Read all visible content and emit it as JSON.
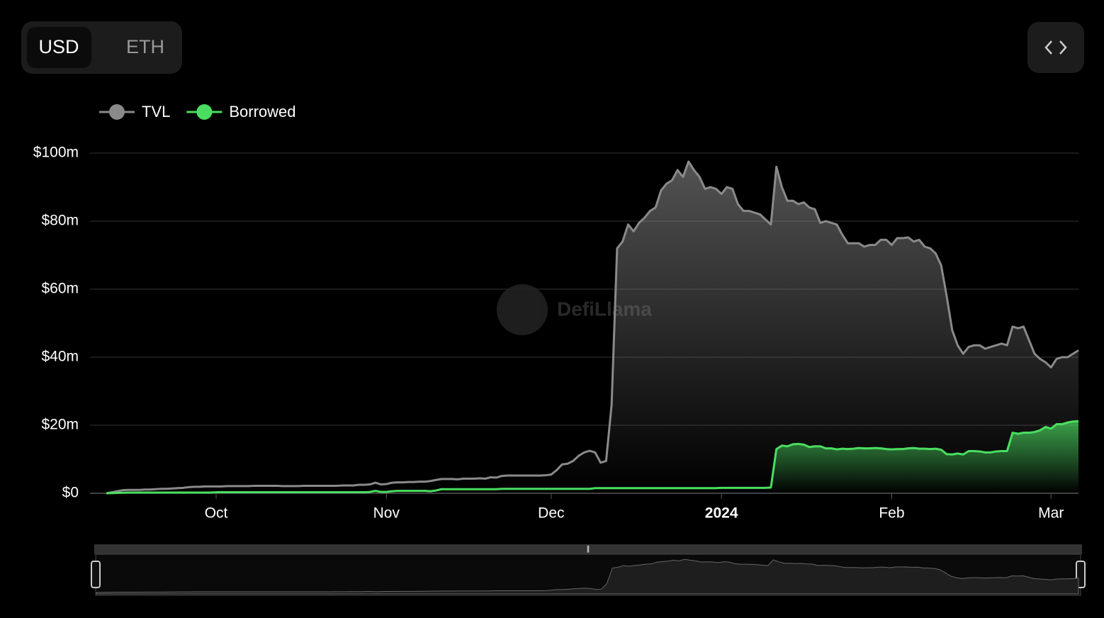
{
  "toggle": {
    "options": [
      "USD",
      "ETH"
    ]
  },
  "watermark": "DefiLlama",
  "chart_data": {
    "type": "area",
    "categories": [
      null,
      null,
      null,
      null,
      null,
      null,
      null,
      null,
      null,
      null,
      null,
      null,
      null,
      null,
      null,
      null,
      null,
      null,
      null,
      null,
      "Oct",
      null,
      null,
      null,
      null,
      null,
      null,
      null,
      null,
      null,
      null,
      null,
      null,
      null,
      null,
      null,
      null,
      null,
      null,
      null,
      null,
      null,
      null,
      null,
      null,
      null,
      null,
      null,
      null,
      null,
      null,
      "Nov",
      null,
      null,
      null,
      null,
      null,
      null,
      null,
      null,
      null,
      null,
      null,
      null,
      null,
      null,
      null,
      null,
      null,
      null,
      null,
      null,
      null,
      null,
      null,
      null,
      null,
      null,
      null,
      null,
      null,
      "Dec",
      null,
      null,
      null,
      null,
      null,
      null,
      null,
      null,
      null,
      null,
      null,
      null,
      null,
      null,
      null,
      null,
      null,
      null,
      null,
      null,
      null,
      null,
      null,
      null,
      null,
      null,
      null,
      null,
      null,
      null,
      "2024",
      null,
      null,
      null,
      null,
      null,
      null,
      null,
      null,
      null,
      null,
      null,
      null,
      null,
      null,
      null,
      null,
      null,
      null,
      null,
      null,
      null,
      null,
      null,
      null,
      null,
      null,
      null,
      null,
      null,
      null,
      "Feb",
      null,
      null,
      null,
      null,
      null,
      null,
      null,
      null,
      null,
      null,
      null,
      null,
      null,
      null,
      null,
      null,
      null,
      null,
      null,
      null,
      null,
      null,
      null,
      null,
      null,
      null,
      null,
      null,
      "Mar",
      null,
      null,
      null,
      null,
      null
    ],
    "series": [
      {
        "name": "TVL",
        "color": "#8a8a8a",
        "values": [
          0,
          0.3,
          0.6,
          0.9,
          1.0,
          1.0,
          1.0,
          1.1,
          1.1,
          1.2,
          1.3,
          1.3,
          1.4,
          1.5,
          1.6,
          1.8,
          1.9,
          1.9,
          2.0,
          2.0,
          2.0,
          2.0,
          2.1,
          2.1,
          2.1,
          2.1,
          2.1,
          2.2,
          2.2,
          2.2,
          2.2,
          2.2,
          2.1,
          2.1,
          2.1,
          2.1,
          2.2,
          2.2,
          2.2,
          2.2,
          2.2,
          2.2,
          2.2,
          2.3,
          2.3,
          2.3,
          2.5,
          2.5,
          2.6,
          3.1,
          2.6,
          2.7,
          3.1,
          3.2,
          3.2,
          3.3,
          3.3,
          3.4,
          3.4,
          3.6,
          3.9,
          4.2,
          4.2,
          4.2,
          4.1,
          4.3,
          4.3,
          4.3,
          4.4,
          4.3,
          4.7,
          4.6,
          5.1,
          5.2,
          5.2,
          5.2,
          5.2,
          5.2,
          5.2,
          5.2,
          5.3,
          5.5,
          6.8,
          8.5,
          8.7,
          9.5,
          11,
          12,
          12.5,
          12,
          9,
          9.5,
          26,
          72,
          74,
          79,
          77,
          79.5,
          81,
          83,
          84,
          89,
          91,
          92,
          95,
          93,
          97.5,
          95,
          93,
          89.5,
          90,
          89.5,
          88,
          90,
          89.5,
          85,
          83,
          83,
          82.5,
          82,
          80.5,
          79,
          96,
          90,
          86,
          86,
          85,
          85.5,
          84,
          83.5,
          79.5,
          80,
          79.5,
          79,
          76,
          73.5,
          73.5,
          73.5,
          72.5,
          73,
          73,
          74.5,
          74.5,
          73,
          75,
          75,
          75.2,
          74,
          74.5,
          72.5,
          72,
          70.5,
          67,
          58,
          48,
          43.5,
          41,
          43,
          43.5,
          43.5,
          42.5,
          43,
          43.5,
          44,
          43.5,
          49,
          48.5,
          49,
          45,
          41,
          39.5,
          38.5,
          37,
          39.5,
          40,
          40,
          41,
          42
        ]
      },
      {
        "name": "Borrowed",
        "color": "#4ade60",
        "values": [
          0,
          0.05,
          0.1,
          0.15,
          0.2,
          0.2,
          0.2,
          0.2,
          0.2,
          0.2,
          0.2,
          0.2,
          0.2,
          0.2,
          0.2,
          0.2,
          0.2,
          0.2,
          0.2,
          0.2,
          0.3,
          0.3,
          0.3,
          0.3,
          0.3,
          0.3,
          0.3,
          0.3,
          0.3,
          0.3,
          0.3,
          0.3,
          0.3,
          0.3,
          0.3,
          0.3,
          0.3,
          0.3,
          0.3,
          0.3,
          0.3,
          0.3,
          0.3,
          0.3,
          0.3,
          0.3,
          0.3,
          0.3,
          0.4,
          0.7,
          0.4,
          0.4,
          0.6,
          0.7,
          0.7,
          0.7,
          0.7,
          0.7,
          0.7,
          0.6,
          0.8,
          1.2,
          1.2,
          1.2,
          1.2,
          1.2,
          1.2,
          1.2,
          1.2,
          1.2,
          1.2,
          1.2,
          1.3,
          1.3,
          1.3,
          1.3,
          1.3,
          1.3,
          1.3,
          1.3,
          1.3,
          1.3,
          1.3,
          1.3,
          1.3,
          1.3,
          1.3,
          1.3,
          1.3,
          1.5,
          1.5,
          1.5,
          1.5,
          1.5,
          1.5,
          1.5,
          1.5,
          1.5,
          1.5,
          1.5,
          1.5,
          1.5,
          1.5,
          1.5,
          1.5,
          1.5,
          1.5,
          1.5,
          1.5,
          1.5,
          1.5,
          1.5,
          1.6,
          1.6,
          1.6,
          1.6,
          1.6,
          1.6,
          1.6,
          1.6,
          1.6,
          1.7,
          13,
          14,
          13.8,
          14.4,
          14.5,
          14.3,
          13.6,
          13.8,
          13.8,
          13.2,
          13.2,
          12.9,
          13.1,
          13,
          13.1,
          13.3,
          13.2,
          13.2,
          13.3,
          13.2,
          13,
          12.9,
          13,
          13,
          13.2,
          13.3,
          13.1,
          13.1,
          13,
          13.1,
          12.8,
          11.5,
          11.4,
          11.7,
          11.4,
          12.4,
          12.4,
          12.3,
          12,
          12,
          12.3,
          12.4,
          12.4,
          17.8,
          17.5,
          17.8,
          17.8,
          18,
          18.5,
          19.5,
          19,
          20.3,
          20.3,
          20.8,
          21.1,
          21.2
        ]
      }
    ],
    "ylim": [
      0,
      100
    ],
    "yticks": [
      {
        "value": 0,
        "label": "$0"
      },
      {
        "value": 20,
        "label": "$20m"
      },
      {
        "value": 40,
        "label": "$40m"
      },
      {
        "value": 60,
        "label": "$60m"
      },
      {
        "value": 80,
        "label": "$80m"
      },
      {
        "value": 100,
        "label": "$100m"
      }
    ],
    "grid": true,
    "legend": "top-left"
  }
}
